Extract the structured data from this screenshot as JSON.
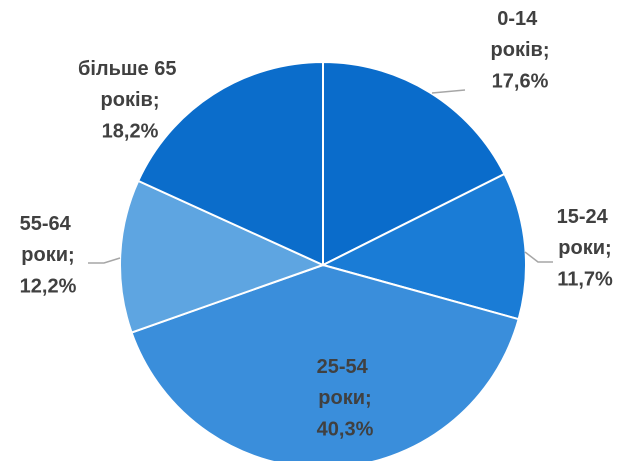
{
  "chart_data": {
    "type": "pie",
    "categories": [
      "0-14 років",
      "15-24 роки",
      "25-54 роки",
      "55-64 роки",
      "більше 65 років"
    ],
    "values": [
      17.6,
      11.7,
      40.3,
      12.2,
      18.2
    ],
    "value_labels": [
      "17,6%",
      "11,7%",
      "40,3%",
      "12,2%",
      "18,2%"
    ],
    "label_separator": ";",
    "colors": [
      "#0a6ccb",
      "#1a7cd6",
      "#3a8edb",
      "#5ea5e1",
      "#0b6dcb"
    ]
  }
}
